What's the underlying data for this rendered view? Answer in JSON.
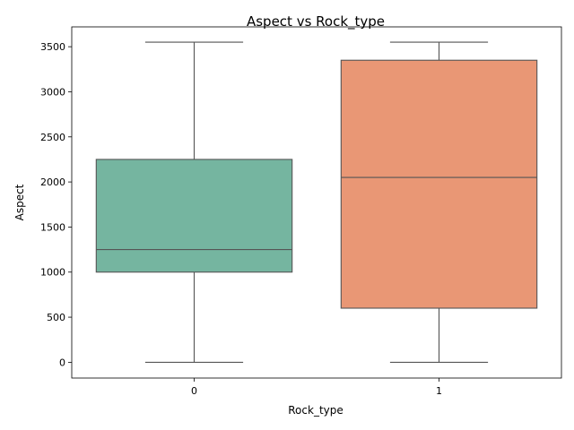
{
  "chart_data": {
    "type": "box",
    "title": "Aspect vs Rock_type",
    "xlabel": "Rock_type",
    "ylabel": "Aspect",
    "ylim": [
      -175,
      3720
    ],
    "yticks": [
      0,
      500,
      1000,
      1500,
      2000,
      2500,
      3000,
      3500
    ],
    "categories": [
      "0",
      "1"
    ],
    "boxes": [
      {
        "category": "0",
        "whisker_low": 0,
        "q1": 1000,
        "median": 1250,
        "q3": 2250,
        "whisker_high": 3550,
        "color": "#75b5a0"
      },
      {
        "category": "1",
        "whisker_low": 0,
        "q1": 600,
        "median": 2050,
        "q3": 3350,
        "whisker_high": 3550,
        "color": "#e99775"
      }
    ],
    "grid": false,
    "legend": "none"
  },
  "colors": {
    "line": "#555555",
    "axis": "#000000"
  }
}
